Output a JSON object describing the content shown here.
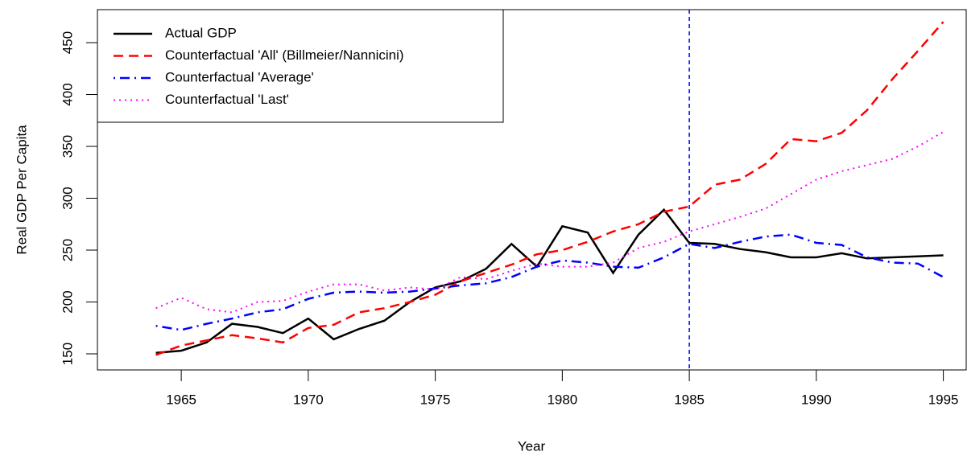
{
  "chart_data": {
    "type": "line",
    "x_label": "Year",
    "y_label": "Real GDP Per Capita",
    "x": [
      1964,
      1965,
      1966,
      1967,
      1968,
      1969,
      1970,
      1971,
      1972,
      1973,
      1974,
      1975,
      1976,
      1977,
      1978,
      1979,
      1980,
      1981,
      1982,
      1983,
      1984,
      1985,
      1986,
      1987,
      1988,
      1989,
      1990,
      1991,
      1992,
      1993,
      1994,
      1995
    ],
    "series": [
      {
        "name": "Actual GDP",
        "color": "#000000",
        "linestyle": "solid",
        "values": [
          151,
          153,
          161,
          179,
          176,
          170,
          184,
          164,
          174,
          182,
          200,
          214,
          220,
          232,
          256,
          234,
          273,
          267,
          228,
          265,
          289,
          257,
          256,
          251,
          248,
          243,
          243,
          247,
          242,
          243,
          244,
          245
        ]
      },
      {
        "name": "Counterfactual 'All' (Billmeier/Nannicini)",
        "color": "#ff0000",
        "linestyle": "dashed",
        "values": [
          149,
          158,
          163,
          168,
          165,
          161,
          175,
          178,
          190,
          194,
          200,
          207,
          220,
          228,
          236,
          246,
          250,
          258,
          268,
          275,
          287,
          292,
          313,
          318,
          333,
          357,
          355,
          363,
          385,
          415,
          442,
          470
        ]
      },
      {
        "name": "Counterfactual 'Average'",
        "color": "#0000ff",
        "linestyle": "dotdash",
        "values": [
          177,
          173,
          179,
          184,
          190,
          193,
          203,
          209,
          210,
          209,
          210,
          213,
          216,
          218,
          224,
          234,
          240,
          238,
          234,
          233,
          243,
          256,
          252,
          258,
          263,
          265,
          257,
          255,
          243,
          238,
          237,
          224
        ]
      },
      {
        "name": "Counterfactual 'Last'",
        "color": "#ff00ff",
        "linestyle": "dotted",
        "values": [
          194,
          204,
          193,
          190,
          200,
          201,
          210,
          217,
          217,
          211,
          214,
          212,
          224,
          222,
          230,
          237,
          234,
          234,
          238,
          252,
          258,
          268,
          275,
          282,
          290,
          304,
          318,
          326,
          332,
          338,
          350,
          364
        ]
      }
    ],
    "vline": {
      "x": 1985,
      "color": "#0000ff"
    },
    "xlim": [
      1961.7,
      1995.9
    ],
    "ylim": [
      134.5,
      481.8
    ],
    "xticks": [
      1965,
      1970,
      1975,
      1980,
      1985,
      1990,
      1995
    ],
    "yticks": [
      150,
      200,
      250,
      300,
      350,
      400,
      450
    ],
    "legend": "top-left",
    "grid": false
  }
}
